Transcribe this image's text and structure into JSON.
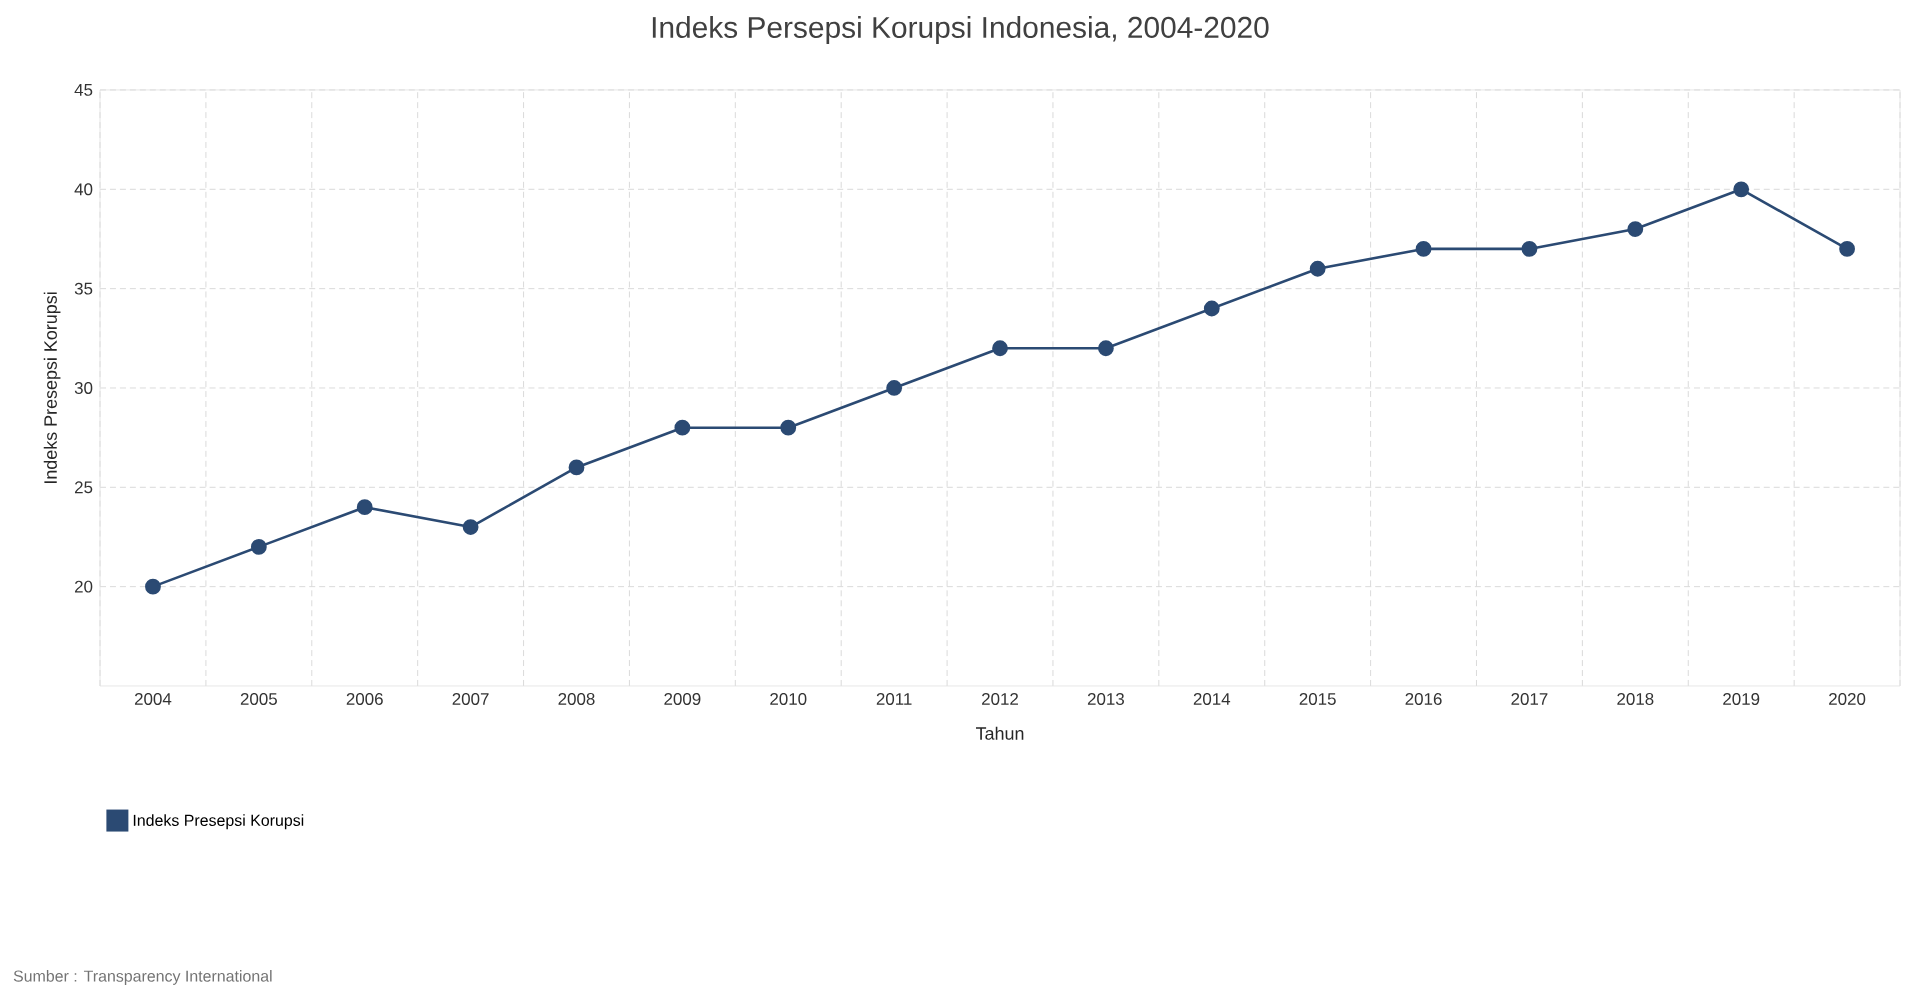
{
  "chart_data": {
    "type": "line",
    "title": "Indeks Persepsi Korupsi Indonesia, 2004-2020",
    "xlabel": "Tahun",
    "ylabel": "Indeks Presepsi Korupsi",
    "categories": [
      "2004",
      "2005",
      "2006",
      "2007",
      "2008",
      "2009",
      "2010",
      "2011",
      "2012",
      "2013",
      "2014",
      "2015",
      "2016",
      "2017",
      "2018",
      "2019",
      "2020"
    ],
    "series": [
      {
        "name": "Indeks Presepsi Korupsi",
        "color": "#2b4a73",
        "values": [
          20,
          22,
          24,
          23,
          26,
          28,
          28,
          30,
          32,
          32,
          34,
          36,
          37,
          37,
          38,
          40,
          37
        ]
      }
    ],
    "ylim": [
      15,
      45
    ],
    "yticks": [
      20,
      25,
      30,
      35,
      40,
      45
    ],
    "grid": true,
    "legend": "bottom left",
    "marker": "circle",
    "line_style": "solid",
    "annotations": [
      "Sumber : Transparency International"
    ]
  }
}
